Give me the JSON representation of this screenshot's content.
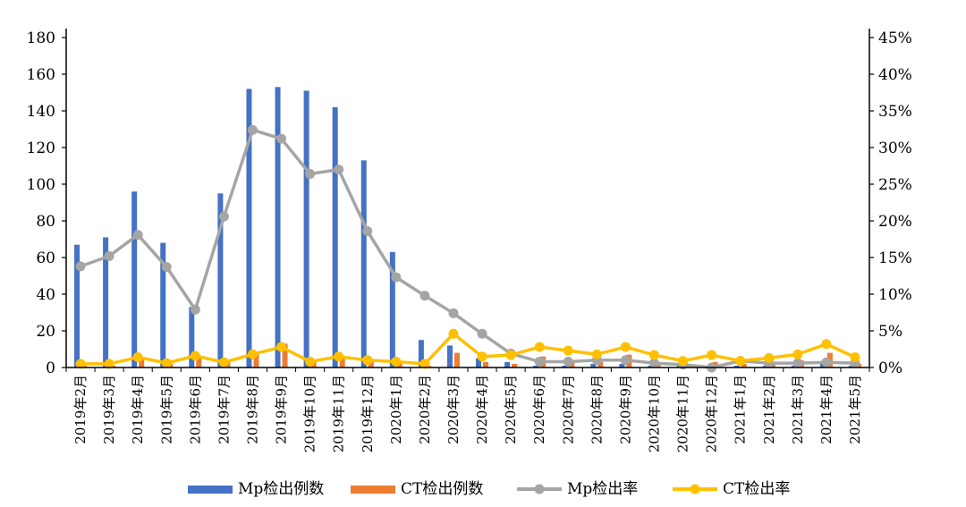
{
  "chart_data": {
    "type": "bar",
    "categories": [
      "2019年2月",
      "2019年3月",
      "2019年4月",
      "2019年5月",
      "2019年6月",
      "2019年7月",
      "2019年8月",
      "2019年9月",
      "2019年10月",
      "2019年11月",
      "2019年12月",
      "2020年1月",
      "2020年2月",
      "2020年3月",
      "2020年4月",
      "2020年5月",
      "2020年6月",
      "2020年7月",
      "2020年8月",
      "2020年9月",
      "2020年10月",
      "2020年11月",
      "2020年12月",
      "2021年1月",
      "2021年2月",
      "2021年3月",
      "2021年4月",
      "2021年5月"
    ],
    "bar_series": [
      {
        "name": "Mp检出例数",
        "color": "#4472C4",
        "axis": "left",
        "values": [
          67,
          71,
          96,
          68,
          33,
          95,
          152,
          153,
          151,
          142,
          113,
          63,
          15,
          12,
          5,
          3,
          1,
          1,
          2,
          2,
          1,
          1,
          1,
          1,
          1,
          1,
          2,
          1
        ]
      },
      {
        "name": "CT检出例数",
        "color": "#ED7D31",
        "axis": "left",
        "values": [
          1,
          1,
          5,
          2,
          6,
          3,
          7,
          13,
          4,
          6,
          4,
          3,
          1,
          8,
          3,
          2,
          6,
          4,
          3,
          7,
          3,
          2,
          3,
          2,
          2,
          4,
          8,
          2
        ]
      }
    ],
    "line_series": [
      {
        "name": "Mp检出率",
        "color": "#A5A5A5",
        "axis": "right",
        "values": [
          13.8,
          15.2,
          18.1,
          13.7,
          7.9,
          20.6,
          32.4,
          31.2,
          26.4,
          27.0,
          18.6,
          12.3,
          9.8,
          7.4,
          4.6,
          1.9,
          0.8,
          0.8,
          1.0,
          1.0,
          0.6,
          0.4,
          0.0,
          0.9,
          0.6,
          0.6,
          0.7,
          0.6
        ]
      },
      {
        "name": "CT检出率",
        "color": "#FFC000",
        "axis": "right",
        "values": [
          0.5,
          0.5,
          1.4,
          0.6,
          1.6,
          0.7,
          1.8,
          2.8,
          0.8,
          1.5,
          1.0,
          0.8,
          0.5,
          4.6,
          1.5,
          1.7,
          2.8,
          2.3,
          1.8,
          2.8,
          1.7,
          0.9,
          1.7,
          0.9,
          1.3,
          1.8,
          3.2,
          1.4
        ]
      }
    ],
    "y_left": {
      "min": 0,
      "max": 180,
      "ticks": [
        "0",
        "20",
        "40",
        "60",
        "80",
        "100",
        "120",
        "140",
        "160",
        "180"
      ]
    },
    "y_right": {
      "min": 0,
      "max": 45,
      "ticks": [
        "0%",
        "5%",
        "10%",
        "15%",
        "20%",
        "25%",
        "30%",
        "35%",
        "40%",
        "45%"
      ]
    },
    "grid": false,
    "legend_position": "bottom"
  }
}
